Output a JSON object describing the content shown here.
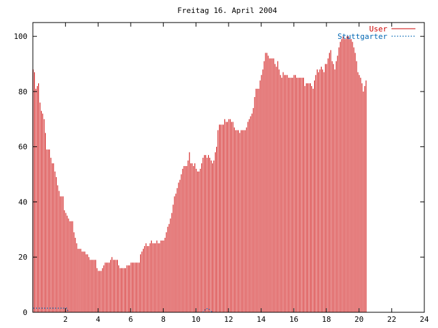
{
  "chart_data": {
    "type": "bar",
    "title": "Freitag 16. April 2004",
    "xlabel": "",
    "ylabel": "",
    "xlim": [
      0,
      24
    ],
    "ylim": [
      0,
      105
    ],
    "xticks": [
      2,
      4,
      6,
      8,
      10,
      12,
      14,
      16,
      18,
      20,
      22,
      24
    ],
    "yticks": [
      0,
      20,
      40,
      60,
      80,
      100
    ],
    "grid": false,
    "legend_position": "top-right",
    "series": [
      {
        "name": "User",
        "color": "#cc0000",
        "x_step_hours": 0.0833,
        "values": [
          88,
          87,
          81,
          82,
          83,
          76,
          73,
          72,
          70,
          65,
          59,
          59,
          59,
          56,
          54,
          54,
          51,
          49,
          46,
          44,
          42,
          42,
          42,
          37,
          36,
          35,
          34,
          33,
          33,
          33,
          29,
          27,
          25,
          23,
          23,
          23,
          22,
          22,
          22,
          21,
          21,
          20,
          19,
          19,
          19,
          19,
          19,
          16,
          15,
          15,
          15,
          16,
          17,
          18,
          18,
          18,
          18,
          19,
          20,
          19,
          19,
          19,
          19,
          17,
          16,
          16,
          16,
          16,
          16,
          17,
          17,
          17,
          18,
          18,
          18,
          18,
          18,
          18,
          18,
          21,
          22,
          23,
          24,
          25,
          24,
          24,
          25,
          26,
          25,
          25,
          25,
          26,
          25,
          25,
          26,
          26,
          26,
          27,
          29,
          31,
          32,
          34,
          36,
          39,
          42,
          43,
          45,
          47,
          48,
          50,
          52,
          53,
          53,
          53,
          55,
          58,
          54,
          54,
          53,
          54,
          52,
          51,
          51,
          52,
          54,
          56,
          57,
          57,
          56,
          57,
          56,
          55,
          54,
          55,
          58,
          60,
          66,
          68,
          68,
          68,
          68,
          70,
          69,
          69,
          70,
          70,
          69,
          69,
          67,
          66,
          66,
          66,
          65,
          66,
          66,
          66,
          66,
          67,
          69,
          70,
          71,
          72,
          74,
          78,
          81,
          81,
          81,
          84,
          86,
          88,
          91,
          94,
          94,
          93,
          92,
          92,
          92,
          92,
          90,
          89,
          91,
          88,
          86,
          85,
          87,
          86,
          86,
          86,
          85,
          85,
          85,
          85,
          86,
          86,
          85,
          85,
          85,
          85,
          85,
          85,
          82,
          83,
          83,
          83,
          83,
          82,
          81,
          84,
          86,
          88,
          87,
          88,
          89,
          88,
          87,
          90,
          90,
          92,
          94,
          95,
          91,
          90,
          88,
          91,
          93,
          96,
          98,
          99,
          100,
          99,
          99,
          100,
          100,
          99,
          99,
          98,
          96,
          94,
          91,
          87,
          86,
          85,
          83,
          80,
          82,
          84
        ]
      },
      {
        "name": "Stuttgarter",
        "color": "#0066b3",
        "x_step_hours": 0.0833,
        "values": [
          1.5,
          1.5,
          1.5,
          1.5,
          1.5,
          1.5,
          1.5,
          1.5,
          1.5,
          1.5,
          1.5,
          1.5,
          1.5,
          1.5,
          1.5,
          1.5,
          1.5,
          1.5,
          1.5,
          1.5,
          1.5,
          1.5,
          1.5,
          1.5,
          1.5,
          1.5,
          0,
          0,
          0,
          0,
          0,
          0,
          0,
          0,
          0,
          0,
          0,
          0,
          0,
          0,
          0,
          0,
          0,
          0,
          0,
          0,
          0,
          0,
          0,
          0,
          0,
          0,
          0,
          0,
          0,
          0,
          0,
          0,
          0,
          0,
          0,
          0,
          0,
          0,
          0,
          0,
          0,
          0,
          0,
          0,
          0,
          0,
          0,
          0,
          0,
          0,
          0,
          0,
          0,
          0,
          0,
          0,
          0,
          0,
          0,
          0,
          0,
          0,
          0,
          0,
          0,
          0,
          0,
          0,
          0,
          0,
          0,
          0,
          0,
          0,
          0,
          0,
          0,
          0,
          0,
          0,
          0,
          0,
          0,
          0,
          0,
          0,
          0,
          0,
          0,
          0,
          0,
          0,
          0,
          0,
          0,
          0,
          0,
          0,
          0,
          0,
          0.5,
          1,
          1.3,
          1.3,
          1,
          0.5,
          0,
          0,
          0,
          0,
          0,
          0,
          0,
          0,
          0,
          0,
          0,
          0,
          0,
          0,
          0,
          0,
          0,
          0,
          0,
          0,
          0,
          0,
          0,
          0,
          0,
          0,
          0,
          0,
          0,
          0,
          0,
          0,
          0,
          0,
          0,
          0,
          0,
          0,
          0,
          0,
          0,
          0,
          0,
          0,
          0,
          0,
          0,
          0,
          0,
          0,
          0,
          0,
          0,
          0,
          0,
          0,
          0,
          0,
          0,
          0,
          0,
          0,
          0,
          0,
          0,
          0,
          0,
          0,
          0,
          0,
          0,
          0,
          0,
          0,
          0,
          0,
          0,
          0,
          0,
          0,
          0,
          0,
          0,
          0,
          0,
          0,
          0,
          0,
          0,
          0,
          0,
          0,
          0,
          0,
          0,
          0,
          0,
          0,
          0,
          0,
          0,
          0,
          0,
          0,
          0,
          0,
          0,
          0,
          0,
          0,
          0,
          0,
          0,
          0,
          0,
          0,
          0,
          0,
          0,
          0,
          0,
          0,
          0,
          0,
          0,
          0,
          0,
          0,
          0,
          0,
          0,
          0,
          0,
          0,
          0,
          0,
          0,
          0,
          0,
          0,
          0,
          0,
          0
        ]
      }
    ]
  }
}
